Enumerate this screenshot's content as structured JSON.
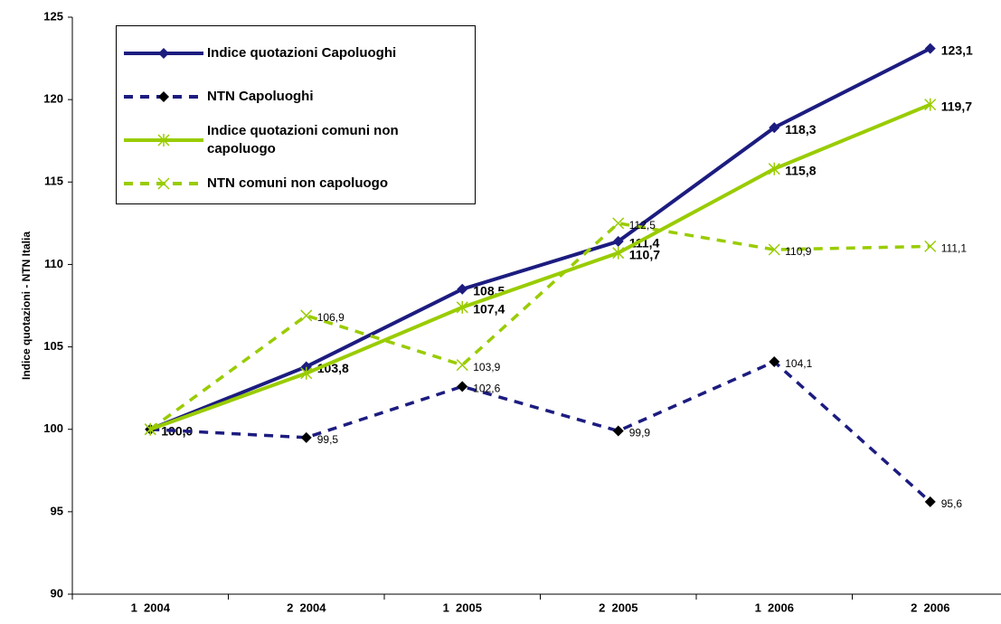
{
  "chart_data": {
    "type": "line",
    "y_label": "Indice quotazioni - NTN Italia",
    "categories": [
      "1  2004",
      "2  2004",
      "1  2005",
      "2  2005",
      "1  2006",
      "2  2006"
    ],
    "ylim": [
      90,
      125
    ],
    "yticks": [
      90,
      95,
      100,
      105,
      110,
      115,
      120,
      125
    ],
    "series": [
      {
        "name": "Indice quotazioni Capoluoghi",
        "color": "#1c1c80",
        "dashed": false,
        "marker": "diamond",
        "marker_color": "#1c1c80",
        "bold_labels": true,
        "values": [
          100.0,
          103.8,
          108.5,
          111.4,
          118.3,
          123.1
        ],
        "value_labels": [
          "100,0",
          "103,8",
          "108,5",
          "111,4",
          "118,3",
          "123,1"
        ]
      },
      {
        "name": "NTN Capoluoghi",
        "color": "#1c1c80",
        "dashed": true,
        "marker": "diamond",
        "marker_color": "#000000",
        "bold_labels": false,
        "values": [
          100.0,
          99.5,
          102.6,
          99.9,
          104.1,
          95.6
        ],
        "value_labels": [
          null,
          "99,5",
          "102,6",
          "99,9",
          "104,1",
          "95,6"
        ]
      },
      {
        "name": "Indice quotazioni comuni non capoluogo",
        "color": "#99cc00",
        "dashed": false,
        "marker": "star",
        "marker_color": "#99cc00",
        "bold_labels": true,
        "values": [
          100.0,
          103.4,
          107.4,
          110.7,
          115.8,
          119.7
        ],
        "value_labels": [
          null,
          null,
          "107,4",
          "110,7",
          "115,8",
          "119,7"
        ]
      },
      {
        "name": "NTN comuni non capoluogo",
        "color": "#99cc00",
        "dashed": true,
        "marker": "cross",
        "marker_color": "#99cc00",
        "bold_labels": false,
        "values": [
          100.0,
          106.9,
          103.9,
          112.5,
          110.9,
          111.1
        ],
        "value_labels": [
          null,
          "106,9",
          "103,9",
          "112,5",
          "110,9",
          "111,1"
        ]
      }
    ]
  }
}
